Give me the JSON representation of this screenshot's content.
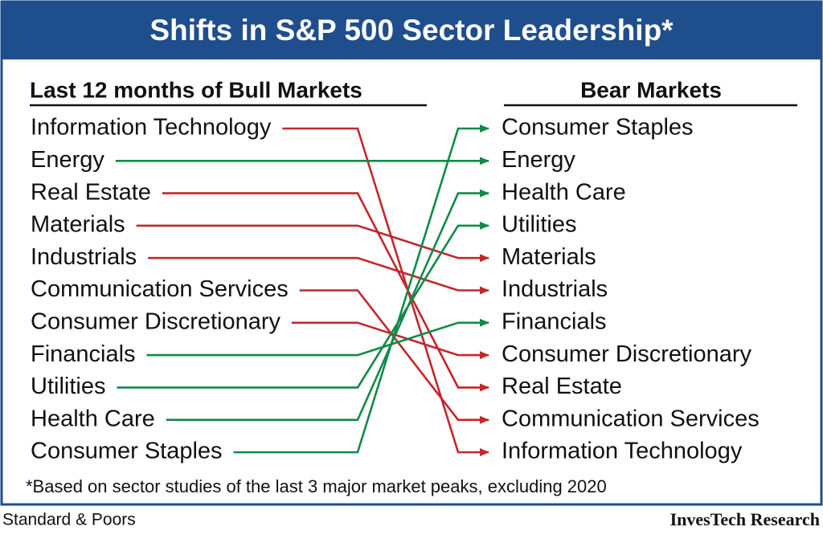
{
  "header": {
    "title": "Shifts in S&P 500 Sector Leadership*"
  },
  "left": {
    "heading": "Last 12 months of Bull Markets",
    "items": [
      "Information Technology",
      "Energy",
      "Real Estate",
      "Materials",
      "Industrials",
      "Communication Services",
      "Consumer Discretionary",
      "Financials",
      "Utilities",
      "Health Care",
      "Consumer Staples"
    ]
  },
  "right": {
    "heading": "Bear Markets",
    "items": [
      "Consumer Staples",
      "Energy",
      "Health Care",
      "Utilities",
      "Materials",
      "Industrials",
      "Financials",
      "Consumer Discretionary",
      "Real Estate",
      "Communication Services",
      "Information Technology"
    ]
  },
  "footnote": "*Based on sector studies of the last 3 major market peaks, excluding 2020",
  "source": "Standard & Poors",
  "brand": "InvesTech Research"
}
